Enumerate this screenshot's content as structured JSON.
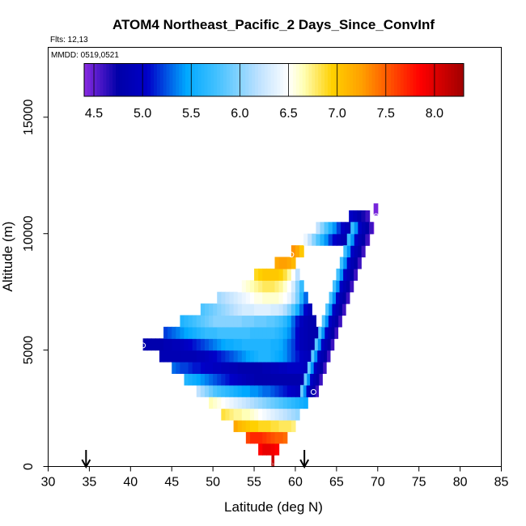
{
  "chart_data": {
    "type": "heatmap",
    "title": "ATOM4 Northeast_Pacific_2 Days_Since_ConvInf",
    "annotations": [
      "Flts: 12,13",
      "MMDD: 0519,0521"
    ],
    "xlabel": "Latitude (deg N)",
    "ylabel": "Altitude (m)",
    "xlim": [
      30,
      85
    ],
    "ylim": [
      0,
      18000
    ],
    "x_ticks": [
      "30",
      "35",
      "40",
      "45",
      "50",
      "55",
      "60",
      "65",
      "70",
      "75",
      "80",
      "85"
    ],
    "y_ticks": [
      "0",
      "5000",
      "10000",
      "15000"
    ],
    "arrows_at_latitude": [
      34.6,
      61.1
    ],
    "colorbar": {
      "range": [
        4.4,
        8.3
      ],
      "ticks": [
        "4.5",
        "5.0",
        "5.5",
        "6.0",
        "6.5",
        "7.0",
        "7.5",
        "8.0"
      ],
      "stops": [
        [
          4.4,
          "#8a2be2"
        ],
        [
          4.75,
          "#0000a8"
        ],
        [
          5.05,
          "#0000c8"
        ],
        [
          5.45,
          "#00a8ff"
        ],
        [
          5.75,
          "#40c0ff"
        ],
        [
          6.2,
          "#bfe2ff"
        ],
        [
          6.5,
          "#ffffff"
        ],
        [
          6.65,
          "#ffffb8"
        ],
        [
          6.95,
          "#ffd000"
        ],
        [
          7.25,
          "#ffa000"
        ],
        [
          7.55,
          "#ff5000"
        ],
        [
          7.85,
          "#ff0000"
        ],
        [
          8.3,
          "#a00000"
        ]
      ]
    },
    "rows": [
      {
        "alt": 0,
        "lat0": 57.1,
        "lat1": 57.4,
        "vals": [
          8.1
        ]
      },
      {
        "alt": 500,
        "lat0": 55.5,
        "lat1": 58.0,
        "vals": [
          7.85,
          7.95,
          7.95,
          7.9,
          7.85
        ]
      },
      {
        "alt": 1000,
        "lat0": 54.0,
        "lat1": 59.0,
        "vals": [
          7.6,
          7.7,
          7.7,
          7.7,
          7.65,
          7.6,
          7.55,
          7.5,
          7.5,
          7.45
        ]
      },
      {
        "alt": 1500,
        "lat0": 52.5,
        "lat1": 60.0,
        "vals": [
          7.2,
          7.1,
          7.05,
          7.0,
          6.95,
          6.95,
          6.9,
          6.9,
          6.9,
          6.85,
          6.85,
          6.8,
          6.8,
          6.8,
          6.75
        ]
      },
      {
        "alt": 2000,
        "lat0": 51.0,
        "lat1": 60.5,
        "vals": [
          6.85,
          6.8,
          6.75,
          6.7,
          6.7,
          6.65,
          6.65,
          6.6,
          6.55,
          6.5,
          6.45,
          6.4,
          6.35,
          6.3,
          6.25,
          6.2,
          6.15,
          6.1,
          6.05
        ]
      },
      {
        "alt": 2500,
        "lat0": 49.5,
        "lat1": 61.5,
        "vals": [
          6.65,
          6.6,
          6.55,
          6.5,
          6.45,
          6.4,
          6.35,
          6.3,
          6.25,
          6.2,
          6.15,
          6.1,
          6.05,
          6.0,
          5.95,
          5.9,
          5.85,
          5.8,
          5.75,
          5.7,
          5.65,
          5.6,
          5.55,
          5.5
        ]
      },
      {
        "alt": 3000,
        "lat0": 48.0,
        "lat1": 62.0,
        "vals": [
          6.2,
          6.1,
          6.0,
          5.9,
          5.8,
          5.75,
          5.7,
          5.65,
          5.6,
          5.55,
          5.5,
          5.45,
          5.45,
          5.4,
          5.4,
          5.35,
          5.3,
          5.3,
          5.25,
          5.2,
          5.15,
          5.1,
          5.05,
          5.0,
          4.95,
          4.9,
          4.85,
          4.8
        ]
      },
      {
        "alt": 3500,
        "lat0": 46.5,
        "lat1": 62.5,
        "vals": [
          5.6,
          5.55,
          5.5,
          5.45,
          5.4,
          5.35,
          5.3,
          5.25,
          5.2,
          5.15,
          5.1,
          5.05,
          5.0,
          4.95,
          4.9,
          4.85,
          4.85,
          4.8,
          4.8,
          4.8,
          4.8,
          4.8,
          4.8,
          4.8,
          4.8,
          4.8,
          4.8,
          4.8,
          4.8,
          4.8,
          4.8,
          4.8
        ]
      },
      {
        "alt": 4000,
        "lat0": 45.0,
        "lat1": 63.0,
        "vals": [
          5.3,
          5.25,
          5.2,
          5.2,
          5.15,
          5.1,
          5.1,
          5.05,
          5.0,
          5.0,
          4.95,
          4.95,
          4.9,
          4.9,
          4.85,
          4.85,
          4.8,
          4.8,
          4.8,
          4.8,
          4.8,
          4.8,
          4.85,
          4.85,
          4.9,
          4.9,
          4.95,
          4.95,
          5.0,
          5.0,
          5.0,
          5.0,
          4.95,
          4.9,
          4.85,
          4.8
        ]
      },
      {
        "alt": 4500,
        "lat0": 43.5,
        "lat1": 63.5,
        "vals": [
          4.85,
          4.85,
          4.85,
          4.85,
          4.85,
          4.85,
          4.85,
          4.85,
          4.85,
          4.9,
          4.9,
          4.95,
          5.0,
          5.05,
          5.1,
          5.15,
          5.2,
          5.25,
          5.3,
          5.35,
          5.4,
          5.45,
          5.5,
          5.55,
          5.6,
          5.6,
          5.6,
          5.55,
          5.5,
          5.45,
          5.4,
          5.3,
          5.2,
          5.1,
          5.0,
          4.95,
          4.9,
          4.85,
          4.8,
          4.8
        ]
      },
      {
        "alt": 5000,
        "lat0": 41.5,
        "lat1": 63.5,
        "vals": [
          4.8,
          4.8,
          4.8,
          4.8,
          4.8,
          4.85,
          4.85,
          4.9,
          4.9,
          4.95,
          5.0,
          5.05,
          5.1,
          5.15,
          5.2,
          5.25,
          5.3,
          5.35,
          5.4,
          5.45,
          5.5,
          5.5,
          5.55,
          5.55,
          5.6,
          5.6,
          5.6,
          5.6,
          5.6,
          5.6,
          5.6,
          5.55,
          5.55,
          5.5,
          5.4,
          5.3,
          5.2,
          5.05,
          4.9,
          4.85,
          4.8,
          4.8,
          4.8,
          4.8
        ]
      },
      {
        "alt": 5500,
        "lat0": 44.0,
        "lat1": 63.0,
        "vals": [
          5.2,
          5.25,
          5.3,
          5.35,
          5.4,
          5.45,
          5.5,
          5.55,
          5.6,
          5.65,
          5.7,
          5.7,
          5.7,
          5.75,
          5.75,
          5.75,
          5.75,
          5.75,
          5.75,
          5.75,
          5.75,
          5.7,
          5.7,
          5.7,
          5.7,
          5.7,
          5.7,
          5.65,
          5.6,
          5.5,
          5.4,
          5.25,
          5.05,
          4.9,
          4.85,
          4.8,
          4.8,
          4.8
        ]
      },
      {
        "alt": 6000,
        "lat0": 46.0,
        "lat1": 62.5,
        "vals": [
          5.6,
          5.65,
          5.7,
          5.75,
          5.8,
          5.85,
          5.9,
          5.95,
          6.0,
          6.0,
          6.0,
          6.0,
          6.0,
          6.0,
          6.0,
          5.95,
          5.95,
          5.95,
          5.9,
          5.9,
          5.9,
          5.85,
          5.85,
          5.8,
          5.75,
          5.65,
          5.5,
          5.3,
          5.1,
          4.95,
          4.85,
          4.8,
          4.8
        ]
      },
      {
        "alt": 6500,
        "lat0": 48.5,
        "lat1": 62.0,
        "vals": [
          5.8,
          5.85,
          5.9,
          5.95,
          6.0,
          6.05,
          6.1,
          6.15,
          6.2,
          6.25,
          6.3,
          6.3,
          6.3,
          6.35,
          6.35,
          6.35,
          6.35,
          6.3,
          6.3,
          6.25,
          6.15,
          6.0,
          5.8,
          5.55,
          5.3,
          5.05,
          4.9
        ]
      },
      {
        "alt": 7000,
        "lat0": 50.5,
        "lat1": 61.5,
        "vals": [
          6.1,
          6.15,
          6.2,
          6.25,
          6.3,
          6.35,
          6.4,
          6.45,
          6.5,
          6.55,
          6.55,
          6.6,
          6.6,
          6.6,
          6.6,
          6.55,
          6.5,
          6.4,
          6.2,
          5.95,
          5.6,
          5.3
        ]
      },
      {
        "alt": 7500,
        "lat0": 53.0,
        "lat1": 61.0,
        "vals": [
          6.5,
          6.55,
          6.6,
          6.65,
          6.7,
          6.75,
          6.8,
          6.8,
          6.8,
          6.75,
          6.7,
          6.6,
          6.5,
          6.3,
          6.0,
          5.7
        ]
      },
      {
        "alt": 8000,
        "lat0": 55.0,
        "lat1": 60.5,
        "vals": [
          6.9,
          6.95,
          7.0,
          7.0,
          7.0,
          7.0,
          6.95,
          6.85,
          6.7,
          6.5,
          6.2
        ]
      },
      {
        "alt": 8500,
        "lat0": 57.5,
        "lat1": 60.0,
        "vals": [
          7.2,
          7.25,
          7.25,
          7.2,
          7.1
        ]
      },
      {
        "alt": 9000,
        "lat0": 59.5,
        "lat1": 61.0,
        "vals": [
          7.3,
          7.2,
          7.0
        ]
      }
    ],
    "edge": [
      [
        61.0,
        8.0,
        5.9,
        6.1,
        6.3,
        6.2,
        6.0,
        5.7,
        5.4,
        5.15,
        5.0,
        4.9,
        4.85,
        4.8,
        4.8,
        4.75
      ],
      [
        62.0,
        9.6,
        5.8,
        6.0,
        6.2,
        6.3,
        6.2,
        6.0,
        5.7,
        5.4,
        5.15,
        5.0,
        4.9,
        4.85,
        4.8,
        4.75,
        4.7
      ]
    ],
    "upper_cap": [
      {
        "alt": 9500,
        "lat0": 61.0,
        "lat1": 69.0,
        "vals": [
          6.4,
          6.2,
          6.0,
          5.8,
          5.6,
          5.4,
          5.2,
          5.05,
          4.95,
          4.85,
          4.8,
          4.75,
          4.7,
          4.6,
          4.5,
          4.45
        ]
      },
      {
        "alt": 10000,
        "lat0": 62.5,
        "lat1": 69.5,
        "vals": [
          6.2,
          6.0,
          5.8,
          5.6,
          5.4,
          5.2,
          5.0,
          4.9,
          4.8,
          4.75,
          4.7,
          4.6,
          4.5,
          4.45
        ]
      },
      {
        "alt": 10500,
        "lat0": 66.5,
        "lat1": 69.0,
        "vals": [
          5.0,
          4.9,
          4.8,
          4.7,
          4.6
        ]
      },
      {
        "alt": 10800,
        "lat0": 69.5,
        "lat1": 70.0,
        "vals": [
          4.45
        ]
      }
    ],
    "markers": [
      {
        "lat": 41.5,
        "alt": 5200
      },
      {
        "lat": 59.5,
        "alt": 9100
      },
      {
        "lat": 62.2,
        "alt": 3200
      },
      {
        "lat": 69.8,
        "alt": 10750
      }
    ]
  }
}
